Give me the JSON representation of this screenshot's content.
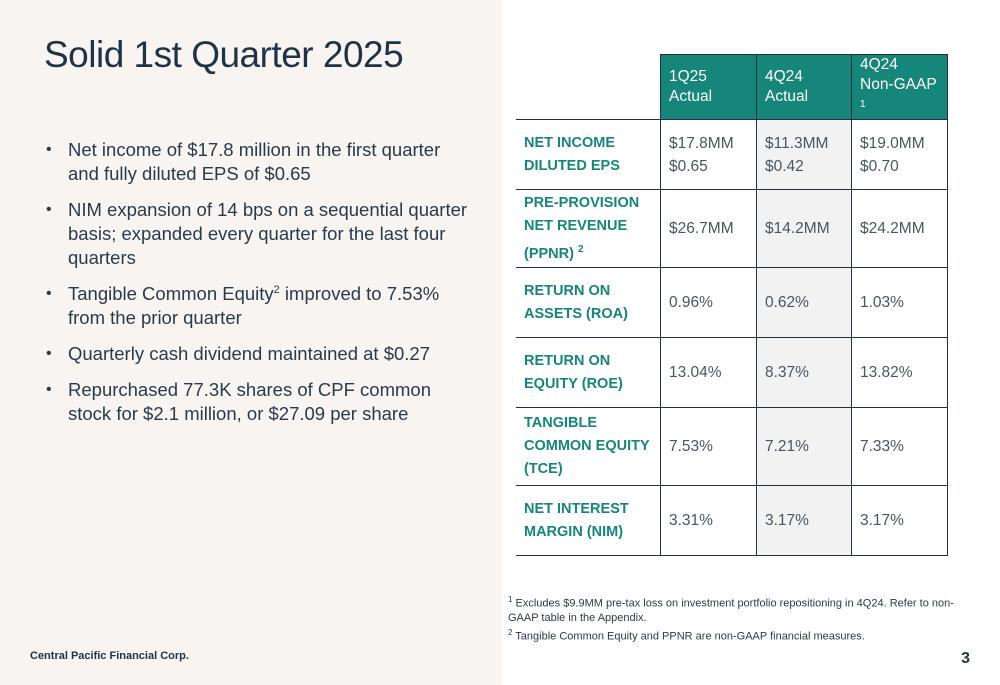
{
  "slide": {
    "title": "Solid 1st Quarter 2025",
    "company": "Central Pacific Financial Corp.",
    "page_number": "3"
  },
  "bullets": [
    {
      "text": "Net income of $17.8 million in the first quarter and fully diluted EPS of $0.65"
    },
    {
      "text": "NIM expansion of 14 bps on a sequential quarter basis; expanded every quarter for the last four quarters"
    },
    {
      "text_before": "Tangible Common Equity",
      "sup": "2",
      "text_after": " improved to 7.53% from the prior quarter"
    },
    {
      "text": "Quarterly cash dividend maintained at $0.27"
    },
    {
      "text": "Repurchased 77.3K shares of CPF common stock for $2.1 million, or $27.09 per share"
    }
  ],
  "table": {
    "columns": [
      {
        "line1": "1Q25",
        "line2": "Actual",
        "sup": ""
      },
      {
        "line1": "4Q24",
        "line2": "Actual",
        "sup": ""
      },
      {
        "line1": "4Q24",
        "line2": "Non-GAAP",
        "sup": "1"
      }
    ],
    "rows": [
      {
        "label_lines": [
          "NET INCOME",
          "DILUTED EPS"
        ],
        "label_sup": "",
        "height": 70,
        "values": [
          [
            "$17.8MM",
            "$0.65"
          ],
          [
            "$11.3MM",
            "$0.42"
          ],
          [
            "$19.0MM",
            "$0.70"
          ]
        ]
      },
      {
        "label_lines": [
          "PRE-PROVISION",
          "NET REVENUE",
          "(PPNR)"
        ],
        "label_sup": "2",
        "height": 78,
        "values": [
          [
            "$26.7MM"
          ],
          [
            "$14.2MM"
          ],
          [
            "$24.2MM"
          ]
        ]
      },
      {
        "label_lines": [
          "RETURN ON",
          "ASSETS (ROA)"
        ],
        "label_sup": "",
        "height": 70,
        "values": [
          [
            "0.96%"
          ],
          [
            "0.62%"
          ],
          [
            "1.03%"
          ]
        ]
      },
      {
        "label_lines": [
          "RETURN ON",
          "EQUITY (ROE)"
        ],
        "label_sup": "",
        "height": 70,
        "values": [
          [
            "13.04%"
          ],
          [
            "8.37%"
          ],
          [
            "13.82%"
          ]
        ]
      },
      {
        "label_lines": [
          "TANGIBLE",
          "COMMON EQUITY",
          "(TCE)"
        ],
        "label_sup": "",
        "height": 78,
        "values": [
          [
            "7.53%"
          ],
          [
            "7.21%"
          ],
          [
            "7.33%"
          ]
        ]
      },
      {
        "label_lines": [
          "NET INTEREST",
          "MARGIN (NIM)"
        ],
        "label_sup": "",
        "height": 70,
        "values": [
          [
            "3.31%"
          ],
          [
            "3.17%"
          ],
          [
            "3.17%"
          ]
        ]
      }
    ]
  },
  "footnotes": [
    {
      "sup": "1",
      "text": " Excludes $9.9MM pre-tax loss on investment portfolio repositioning in 4Q24. Refer to non-GAAP table in the Appendix."
    },
    {
      "sup": "2",
      "text": " Tangible Common Equity and PPNR are non-GAAP financial measures."
    }
  ]
}
